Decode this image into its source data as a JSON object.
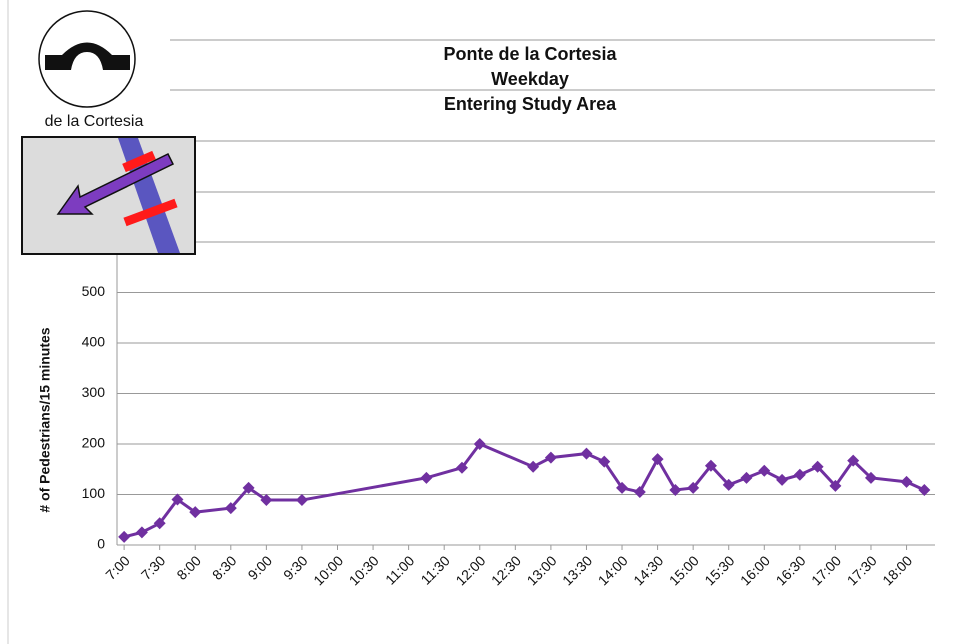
{
  "chart_data": {
    "type": "line",
    "title": [
      "Ponte de la Cortesia",
      "Weekday",
      "Entering Study Area"
    ],
    "annotations": [
      "de la Cortesia"
    ],
    "y_label": "# of Pedestrians/15 minutes",
    "x": [
      7,
      7.25,
      7.5,
      7.75,
      8,
      8.5,
      8.75,
      9,
      9.5,
      11.25,
      11.75,
      12,
      12.75,
      13,
      13.5,
      13.75,
      14,
      14.25,
      14.5,
      14.75,
      15,
      15.25,
      15.5,
      15.75,
      16,
      16.25,
      16.5,
      16.75,
      17,
      17.25,
      17.5,
      18,
      18.25
    ],
    "series": [
      {
        "name": "Entering Study Area",
        "color": "#7030a0",
        "values": [
          16,
          25,
          43,
          90,
          65,
          73,
          113,
          89,
          89,
          133,
          153,
          200,
          155,
          173,
          181,
          165,
          113,
          105,
          170,
          109,
          113,
          157,
          119,
          133,
          147,
          129,
          139,
          155,
          117,
          167,
          133,
          125,
          109
        ]
      }
    ],
    "xlim": [
      6.9,
      18.4
    ],
    "ylim": [
      0,
      1000
    ],
    "yticks": [
      0,
      100,
      200,
      300,
      400,
      500
    ],
    "xticks": [
      {
        "value": 7,
        "label": "7:00"
      },
      {
        "value": 7.5,
        "label": "7:30"
      },
      {
        "value": 8,
        "label": "8:00"
      },
      {
        "value": 8.5,
        "label": "8:30"
      },
      {
        "value": 9,
        "label": "9:00"
      },
      {
        "value": 9.5,
        "label": "9:30"
      },
      {
        "value": 10,
        "label": "10:00"
      },
      {
        "value": 10.5,
        "label": "10:30"
      },
      {
        "value": 11,
        "label": "11:00"
      },
      {
        "value": 11.5,
        "label": "11:30"
      },
      {
        "value": 12,
        "label": "12:00"
      },
      {
        "value": 12.5,
        "label": "12:30"
      },
      {
        "value": 13,
        "label": "13:00"
      },
      {
        "value": 13.5,
        "label": "13:30"
      },
      {
        "value": 14,
        "label": "14:00"
      },
      {
        "value": 14.5,
        "label": "14:30"
      },
      {
        "value": 15,
        "label": "15:00"
      },
      {
        "value": 15.5,
        "label": "15:30"
      },
      {
        "value": 16,
        "label": "16:00"
      },
      {
        "value": 16.5,
        "label": "16:30"
      },
      {
        "value": 17,
        "label": "17:00"
      },
      {
        "value": 17.5,
        "label": "17:30"
      },
      {
        "value": 18,
        "label": "18:00"
      }
    ],
    "grid": true
  }
}
